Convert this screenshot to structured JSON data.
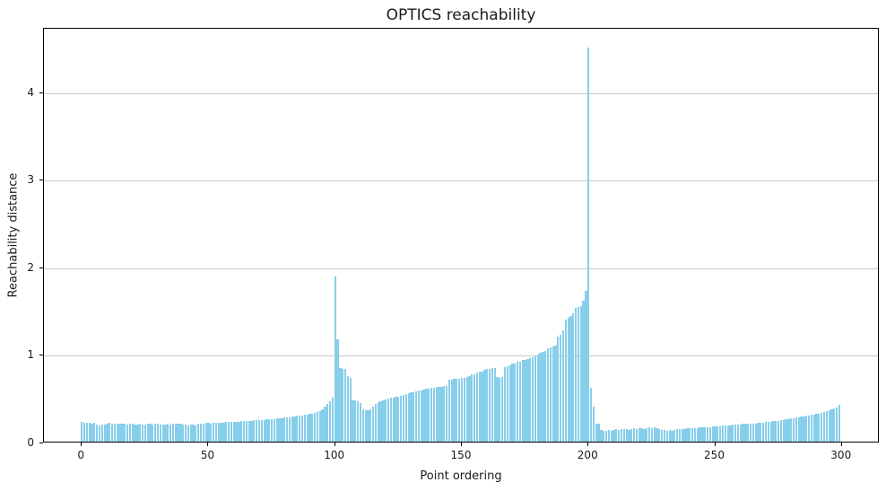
{
  "chart_data": {
    "type": "bar",
    "title": "OPTICS reachability",
    "xlabel": "Point ordering",
    "ylabel": "Reachability distance",
    "x_ticks": [
      0,
      50,
      100,
      150,
      200,
      250,
      300
    ],
    "y_ticks": [
      0,
      1,
      2,
      3,
      4
    ],
    "xlim": [
      -14.95,
      314.95
    ],
    "ylim": [
      0,
      4.7325
    ],
    "grid": "y",
    "legend": "none",
    "bar_color": "#87ceeb",
    "grid_color": "#c8c8c8",
    "axis_color": "#000000",
    "text_color": "#1a1a1a",
    "n_points": 300,
    "x_is_index": true,
    "values": [
      0.23,
      0.22,
      0.22,
      0.22,
      0.21,
      0.22,
      0.19,
      0.18,
      0.19,
      0.19,
      0.21,
      0.22,
      0.21,
      0.2,
      0.2,
      0.21,
      0.2,
      0.2,
      0.19,
      0.2,
      0.2,
      0.19,
      0.19,
      0.2,
      0.19,
      0.19,
      0.2,
      0.2,
      0.19,
      0.2,
      0.2,
      0.19,
      0.19,
      0.19,
      0.2,
      0.19,
      0.2,
      0.21,
      0.2,
      0.2,
      0.19,
      0.19,
      0.18,
      0.19,
      0.19,
      0.18,
      0.2,
      0.21,
      0.21,
      0.22,
      0.22,
      0.21,
      0.22,
      0.22,
      0.22,
      0.22,
      0.22,
      0.23,
      0.23,
      0.23,
      0.23,
      0.23,
      0.23,
      0.24,
      0.24,
      0.24,
      0.24,
      0.24,
      0.25,
      0.25,
      0.25,
      0.25,
      0.25,
      0.26,
      0.26,
      0.26,
      0.26,
      0.27,
      0.27,
      0.27,
      0.28,
      0.28,
      0.28,
      0.29,
      0.29,
      0.3,
      0.3,
      0.3,
      0.31,
      0.31,
      0.32,
      0.32,
      0.33,
      0.34,
      0.35,
      0.37,
      0.4,
      0.43,
      0.46,
      0.5,
      1.89,
      1.17,
      0.84,
      0.83,
      0.83,
      0.75,
      0.73,
      0.47,
      0.47,
      0.46,
      0.44,
      0.37,
      0.36,
      0.36,
      0.37,
      0.4,
      0.43,
      0.45,
      0.46,
      0.47,
      0.48,
      0.49,
      0.5,
      0.5,
      0.51,
      0.51,
      0.52,
      0.53,
      0.54,
      0.55,
      0.56,
      0.56,
      0.57,
      0.58,
      0.58,
      0.59,
      0.6,
      0.6,
      0.61,
      0.61,
      0.62,
      0.63,
      0.63,
      0.64,
      0.64,
      0.71,
      0.71,
      0.72,
      0.72,
      0.72,
      0.73,
      0.73,
      0.74,
      0.75,
      0.77,
      0.77,
      0.79,
      0.8,
      0.8,
      0.82,
      0.83,
      0.83,
      0.84,
      0.84,
      0.74,
      0.73,
      0.74,
      0.85,
      0.86,
      0.87,
      0.89,
      0.89,
      0.91,
      0.91,
      0.93,
      0.93,
      0.94,
      0.95,
      0.96,
      0.98,
      0.99,
      1.01,
      1.02,
      1.03,
      1.07,
      1.08,
      1.09,
      1.1,
      1.2,
      1.22,
      1.27,
      1.39,
      1.41,
      1.43,
      1.46,
      1.53,
      1.54,
      1.55,
      1.61,
      1.72,
      4.5,
      0.61,
      0.4,
      0.21,
      0.21,
      0.13,
      0.12,
      0.12,
      0.13,
      0.12,
      0.13,
      0.14,
      0.13,
      0.14,
      0.14,
      0.14,
      0.13,
      0.14,
      0.15,
      0.14,
      0.15,
      0.15,
      0.14,
      0.15,
      0.16,
      0.15,
      0.16,
      0.15,
      0.14,
      0.13,
      0.13,
      0.12,
      0.13,
      0.12,
      0.13,
      0.14,
      0.14,
      0.14,
      0.14,
      0.15,
      0.15,
      0.15,
      0.15,
      0.15,
      0.16,
      0.16,
      0.16,
      0.16,
      0.16,
      0.17,
      0.17,
      0.17,
      0.17,
      0.18,
      0.18,
      0.18,
      0.18,
      0.19,
      0.19,
      0.19,
      0.19,
      0.2,
      0.2,
      0.2,
      0.21,
      0.21,
      0.21,
      0.22,
      0.22,
      0.22,
      0.23,
      0.23,
      0.23,
      0.24,
      0.24,
      0.24,
      0.25,
      0.25,
      0.26,
      0.26,
      0.27,
      0.27,
      0.28,
      0.28,
      0.29,
      0.29,
      0.3,
      0.3,
      0.31,
      0.31,
      0.32,
      0.32,
      0.33,
      0.34,
      0.35,
      0.36,
      0.37,
      0.38,
      0.39,
      0.42
    ]
  }
}
